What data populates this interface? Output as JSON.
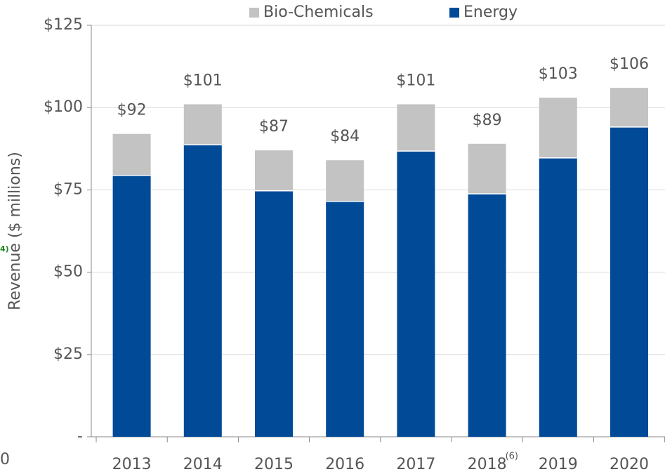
{
  "chart_data": {
    "type": "stacked_bar",
    "ylabel": "Revenue ($ millions)",
    "categories": [
      "2013",
      "2014",
      "2015",
      "2016",
      "2017",
      "2018",
      "2019",
      "2020"
    ],
    "series": [
      {
        "name": "Energy",
        "color": "#004a97",
        "values": [
          79.4,
          88.7,
          74.7,
          71.5,
          86.8,
          73.8,
          84.7,
          94.1
        ]
      },
      {
        "name": "Bio-Chemicals",
        "color": "#c3c3c3",
        "values": [
          12.6,
          12.3,
          12.3,
          12.5,
          14.2,
          15.2,
          18.3,
          11.9
        ]
      }
    ],
    "totals": [
      92,
      101,
      87,
      84,
      101,
      89,
      103,
      106
    ],
    "total_labels": [
      "$92",
      "$101",
      "$87",
      "$84",
      "$101",
      "$89",
      "$103",
      "$106"
    ],
    "annotations": [
      {
        "category_index": 5,
        "text": "(6)"
      }
    ],
    "cropped_fragments": [
      "4)",
      "0"
    ],
    "ylim": [
      0,
      125
    ],
    "yticks": [
      {
        "value": 0,
        "label": "-"
      },
      {
        "value": 25,
        "label": "$25"
      },
      {
        "value": 50,
        "label": "$50"
      },
      {
        "value": 75,
        "label": "$75"
      },
      {
        "value": 100,
        "label": "$100"
      },
      {
        "value": 125,
        "label": "$125"
      }
    ],
    "grid": true,
    "legend": "top"
  }
}
